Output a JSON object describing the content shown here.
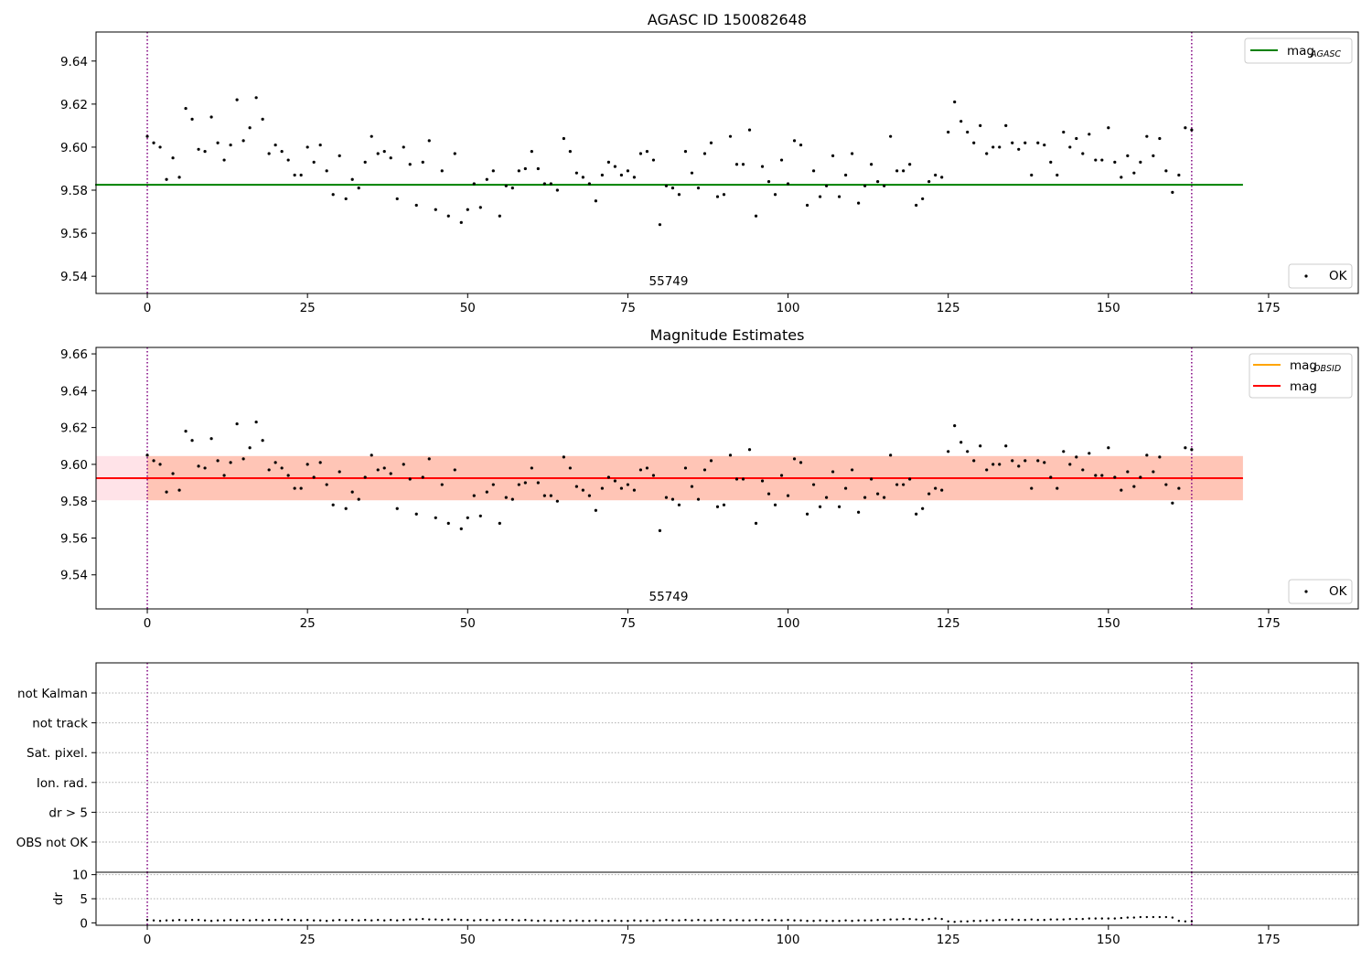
{
  "chart_data": [
    {
      "type": "scatter",
      "title": "AGASC ID 150082648",
      "xlim": [
        -8,
        189
      ],
      "ylim": [
        9.532,
        9.6535
      ],
      "xticks": [
        0,
        25,
        50,
        75,
        100,
        125,
        150,
        175
      ],
      "yticks": [
        9.54,
        9.56,
        9.58,
        9.6,
        9.62,
        9.64
      ],
      "ytick_labels": [
        "9.54",
        "9.56",
        "9.58",
        "9.60",
        "9.62",
        "9.64"
      ],
      "annotation": {
        "text": "55749",
        "x": 81,
        "y": 9.5375
      },
      "vlines": [
        0,
        163
      ],
      "hlines": [
        {
          "name": "mag",
          "subscript": "AGASC",
          "y": 9.5825,
          "x_range": [
            0,
            171
          ],
          "color": "#008000"
        }
      ],
      "legends": [
        {
          "position": "top-right",
          "entries": [
            {
              "kind": "line",
              "color": "#008000",
              "label": "mag",
              "subscript": "AGASC"
            }
          ]
        },
        {
          "position": "bottom-right",
          "entries": [
            {
              "kind": "point",
              "color": "#000000",
              "label": "OK"
            }
          ]
        }
      ],
      "series_ref": "points",
      "grid": false
    },
    {
      "type": "scatter",
      "title": "Magnitude Estimates",
      "xlim": [
        -8,
        189
      ],
      "ylim": [
        9.5215,
        9.6635
      ],
      "xticks": [
        0,
        25,
        50,
        75,
        100,
        125,
        150,
        175
      ],
      "yticks": [
        9.54,
        9.56,
        9.58,
        9.6,
        9.62,
        9.64,
        9.66
      ],
      "ytick_labels": [
        "9.54",
        "9.56",
        "9.58",
        "9.60",
        "9.62",
        "9.64",
        "9.66"
      ],
      "annotation": {
        "text": "55749",
        "x": 81,
        "y": 9.525
      },
      "vlines": [
        0,
        163
      ],
      "hlines": [
        {
          "name": "mag",
          "subscript": "OBSID",
          "y": 9.5925,
          "x_range": [
            0,
            171
          ],
          "color": "#ffa500"
        },
        {
          "name": "mag",
          "y": 9.5925,
          "x_range": [
            0,
            171
          ],
          "color": "#ff0000"
        }
      ],
      "bands": [
        {
          "color": "#ffc0cb",
          "y_range": [
            9.5805,
            9.6045
          ],
          "x_range": [
            -8,
            171
          ]
        },
        {
          "color": "#ffa07a",
          "y_range": [
            9.5805,
            9.6045
          ],
          "x_range": [
            0,
            171
          ]
        }
      ],
      "legends": [
        {
          "position": "top-right",
          "entries": [
            {
              "kind": "line",
              "color": "#ffa500",
              "label": "mag",
              "subscript": "OBSID"
            },
            {
              "kind": "line",
              "color": "#ff0000",
              "label": "mag"
            }
          ]
        },
        {
          "position": "bottom-right",
          "entries": [
            {
              "kind": "point",
              "color": "#000000",
              "label": "OK"
            }
          ]
        }
      ],
      "series_ref": "points",
      "grid": false
    },
    {
      "type": "scatter",
      "title": "",
      "categories": [
        "not Kalman",
        "not track",
        "Sat. pixel.",
        "Ion. rad.",
        "dr > 5",
        "OBS not OK"
      ],
      "grid": "horizontal dotted",
      "vlines": [
        0,
        163
      ],
      "xlim": [
        -8,
        189
      ]
    },
    {
      "type": "scatter",
      "title": "",
      "ylabel": "dr",
      "xlim": [
        -8,
        189
      ],
      "ylim": [
        -0.5,
        10.5
      ],
      "xticks": [
        0,
        25,
        50,
        75,
        100,
        125,
        150,
        175
      ],
      "yticks": [
        0,
        5,
        10
      ],
      "vlines": [
        0,
        163
      ],
      "dr_values": [
        0.6,
        0.5,
        0.4,
        0.5,
        0.5,
        0.6,
        0.5,
        0.6,
        0.6,
        0.5,
        0.4,
        0.5,
        0.5,
        0.6,
        0.5,
        0.6,
        0.5,
        0.6,
        0.5,
        0.6,
        0.6,
        0.7,
        0.6,
        0.6,
        0.5,
        0.6,
        0.5,
        0.5,
        0.4,
        0.5,
        0.6,
        0.5,
        0.6,
        0.5,
        0.6,
        0.5,
        0.6,
        0.5,
        0.6,
        0.5,
        0.6,
        0.7,
        0.7,
        0.8,
        0.7,
        0.7,
        0.6,
        0.7,
        0.7,
        0.6,
        0.6,
        0.5,
        0.6,
        0.6,
        0.5,
        0.6,
        0.6,
        0.6,
        0.5,
        0.6,
        0.5,
        0.4,
        0.5,
        0.4,
        0.4,
        0.5,
        0.4,
        0.5,
        0.4,
        0.4,
        0.5,
        0.4,
        0.4,
        0.5,
        0.4,
        0.4,
        0.5,
        0.4,
        0.5,
        0.4,
        0.5,
        0.6,
        0.5,
        0.5,
        0.6,
        0.5,
        0.6,
        0.5,
        0.5,
        0.6,
        0.6,
        0.5,
        0.6,
        0.5,
        0.5,
        0.6,
        0.6,
        0.5,
        0.6,
        0.5,
        0.6,
        0.5,
        0.5,
        0.4,
        0.4,
        0.5,
        0.4,
        0.4,
        0.4,
        0.5,
        0.4,
        0.5,
        0.5,
        0.5,
        0.6,
        0.6,
        0.7,
        0.7,
        0.8,
        0.8,
        0.7,
        0.6,
        0.8,
        0.9,
        0.8,
        0.3,
        0.2,
        0.3,
        0.3,
        0.4,
        0.4,
        0.5,
        0.5,
        0.6,
        0.6,
        0.7,
        0.6,
        0.6,
        0.7,
        0.6,
        0.6,
        0.7,
        0.7,
        0.7,
        0.8,
        0.8,
        0.8,
        0.9,
        0.9,
        0.9,
        0.9,
        0.9,
        1.0,
        1.1,
        1.1,
        1.2,
        1.2,
        1.2,
        1.2,
        1.2,
        1.1,
        0.4,
        0.3,
        0.3
      ]
    }
  ],
  "points": [
    9.605,
    9.602,
    9.6,
    9.585,
    9.595,
    9.586,
    9.618,
    9.613,
    9.599,
    9.598,
    9.614,
    9.602,
    9.594,
    9.601,
    9.622,
    9.603,
    9.609,
    9.623,
    9.613,
    9.597,
    9.601,
    9.598,
    9.594,
    9.587,
    9.587,
    9.6,
    9.593,
    9.601,
    9.589,
    9.578,
    9.596,
    9.576,
    9.585,
    9.581,
    9.593,
    9.605,
    9.597,
    9.598,
    9.595,
    9.576,
    9.6,
    9.592,
    9.573,
    9.593,
    9.603,
    9.571,
    9.589,
    9.568,
    9.597,
    9.565,
    9.571,
    9.583,
    9.572,
    9.585,
    9.589,
    9.568,
    9.582,
    9.581,
    9.589,
    9.59,
    9.598,
    9.59,
    9.583,
    9.583,
    9.58,
    9.604,
    9.598,
    9.588,
    9.586,
    9.583,
    9.575,
    9.587,
    9.593,
    9.591,
    9.587,
    9.589,
    9.586,
    9.597,
    9.598,
    9.594,
    9.564,
    9.582,
    9.581,
    9.578,
    9.598,
    9.588,
    9.581,
    9.597,
    9.602,
    9.577,
    9.578,
    9.605,
    9.592,
    9.592,
    9.608,
    9.568,
    9.591,
    9.584,
    9.578,
    9.594,
    9.583,
    9.603,
    9.601,
    9.573,
    9.589,
    9.577,
    9.582,
    9.596,
    9.577,
    9.587,
    9.597,
    9.574,
    9.582,
    9.592,
    9.584,
    9.582,
    9.605,
    9.589,
    9.589,
    9.592,
    9.573,
    9.576,
    9.584,
    9.587,
    9.586,
    9.607,
    9.621,
    9.612,
    9.607,
    9.602,
    9.61,
    9.597,
    9.6,
    9.6,
    9.61,
    9.602,
    9.599,
    9.602,
    9.587,
    9.602,
    9.601,
    9.593,
    9.587,
    9.607,
    9.6,
    9.604,
    9.597,
    9.606,
    9.594,
    9.594,
    9.609,
    9.593,
    9.586,
    9.596,
    9.588,
    9.593,
    9.605,
    9.596,
    9.604,
    9.589,
    9.579,
    9.587,
    9.609,
    9.608
  ]
}
